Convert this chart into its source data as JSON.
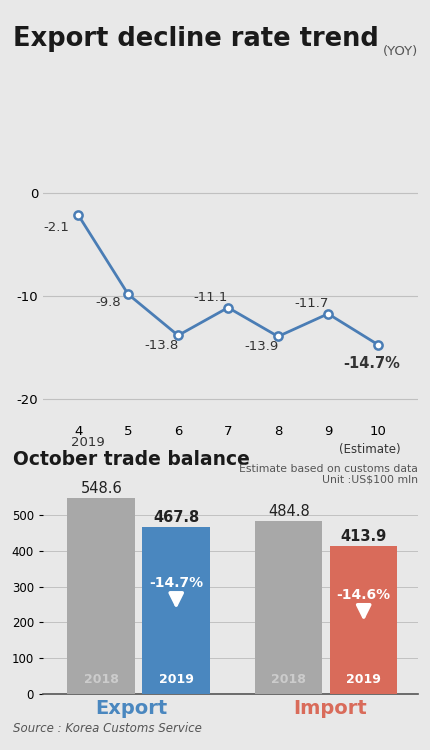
{
  "title": "Export decline rate trend",
  "yoy_label": "(YOY)",
  "line_x": [
    4,
    5,
    6,
    7,
    8,
    9,
    10
  ],
  "line_y": [
    -2.1,
    -9.8,
    -13.8,
    -11.1,
    -13.9,
    -11.7,
    -14.7
  ],
  "line_labels": [
    "-2.1",
    "-9.8",
    "-13.8",
    "-11.1",
    "-13.9",
    "-11.7",
    "-14.7%"
  ],
  "line_color": "#4a7db5",
  "bg_color": "#e8e8e8",
  "x_ticklabels": [
    "4",
    "5",
    "6",
    "7",
    "8",
    "9",
    "10"
  ],
  "x_year": "2019",
  "x_estimate": "(Estimate)",
  "ylim_line": [
    -22,
    2
  ],
  "yticks_line": [
    0,
    -10,
    -20
  ],
  "bar_title": "October trade balance",
  "bar_note1": "Estimate based on customs data",
  "bar_note2": "Unit :US$100 mln",
  "export_2018": 548.6,
  "export_2019": 467.8,
  "import_2018": 484.8,
  "import_2019": 413.9,
  "export_change": "-14.7%",
  "import_change": "-14.6%",
  "color_gray": "#a8a8a8",
  "color_blue": "#4a87bf",
  "color_red": "#d96b5a",
  "bar_ylim": [
    0,
    620
  ],
  "bar_yticks": [
    0,
    100,
    200,
    300,
    400,
    500
  ],
  "source_text": "Source : Korea Customs Service"
}
